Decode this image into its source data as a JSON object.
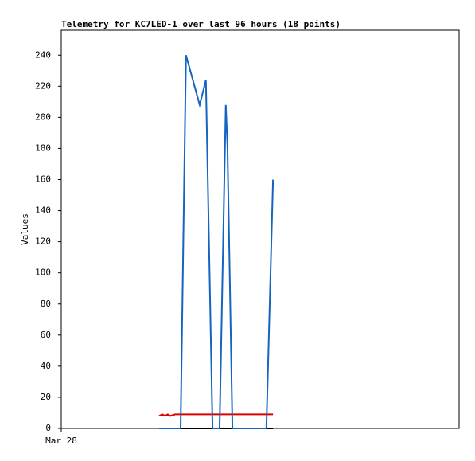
{
  "chart_data": {
    "type": "line",
    "title": "Telemetry for KC7LED-1 over last 96 hours (18 points)",
    "y_label": "Values",
    "x": [
      23.6,
      24.4,
      25.0,
      25.7,
      26.3,
      27.5,
      28.8,
      30.1,
      33.4,
      34.9,
      36.5,
      38.2,
      39.7,
      40.1,
      41.3,
      42.8,
      49.5,
      51.1
    ],
    "xlim": [
      0,
      96
    ],
    "xticks": [
      {
        "value": 0,
        "label": "Mar 28"
      }
    ],
    "ylim": [
      0,
      256
    ],
    "yticks": [
      0,
      20,
      40,
      60,
      80,
      100,
      120,
      140,
      160,
      180,
      200,
      220,
      240
    ],
    "series": [
      {
        "color": "#000000",
        "values": [
          0,
          0,
          0,
          0,
          0,
          0,
          0,
          0,
          0,
          0,
          0,
          0,
          0,
          0,
          0,
          0,
          0,
          0
        ]
      },
      {
        "color": "#e00000",
        "values": [
          8,
          9,
          8,
          9,
          8,
          9,
          9,
          9,
          9,
          9,
          9,
          9,
          9,
          9,
          9,
          9,
          9,
          9
        ]
      },
      {
        "color": "#1565c0",
        "values": [
          0,
          0,
          0,
          0,
          0,
          0,
          0,
          240,
          208,
          224,
          0,
          0,
          208,
          182,
          0,
          0,
          0,
          160
        ]
      }
    ]
  }
}
